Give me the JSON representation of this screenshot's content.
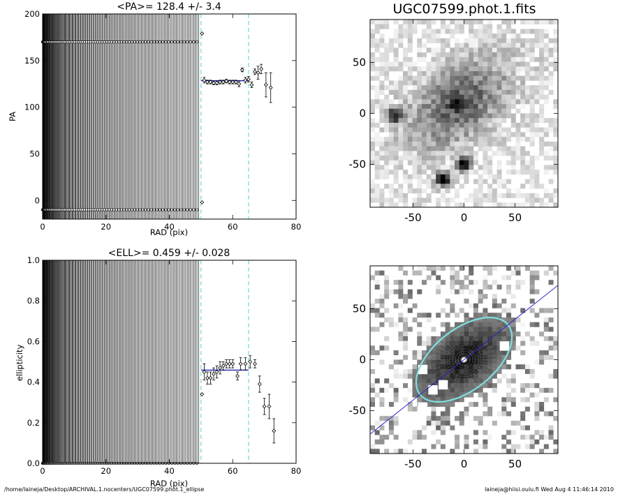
{
  "footer": {
    "path": "/home/laineja/Desktop/ARCHIVAL.1.nocenters/UGC07599.phot.1_ellipse",
    "stamp": "laineja@hiisi.oulu.fi  Wed Aug  4 11:46:14 2010"
  },
  "chart_data": [
    {
      "id": "pa",
      "type": "scatter",
      "title": "<PA>= 128.4 +/-   3.4",
      "xlabel": "RAD (pix)",
      "ylabel": "PA",
      "xlim": [
        0,
        80
      ],
      "ylim": [
        -20,
        200
      ],
      "xticks": [
        "0",
        "20",
        "40",
        "60",
        "80"
      ],
      "yticks": [
        "0",
        "50",
        "100",
        "150",
        "200"
      ],
      "mean_line": {
        "x": [
          50,
          65
        ],
        "y": 128.4
      },
      "marker_lines": [
        50,
        65
      ],
      "inner_rows": [
        {
          "y": 170,
          "x_max": 49.2
        },
        {
          "y": -10,
          "x_max": 49.2
        }
      ],
      "points": [
        {
          "x": 50.3,
          "y": 179,
          "err": 0
        },
        {
          "x": 50.3,
          "y": -2,
          "err": 0
        },
        {
          "x": 51.0,
          "y": 129,
          "err": 3
        },
        {
          "x": 52.0,
          "y": 127,
          "err": 2
        },
        {
          "x": 53.0,
          "y": 127,
          "err": 2
        },
        {
          "x": 54.0,
          "y": 126,
          "err": 2
        },
        {
          "x": 55.0,
          "y": 126,
          "err": 2
        },
        {
          "x": 56.0,
          "y": 127,
          "err": 2
        },
        {
          "x": 57.0,
          "y": 127,
          "err": 2
        },
        {
          "x": 58.0,
          "y": 128,
          "err": 2
        },
        {
          "x": 59.0,
          "y": 127,
          "err": 2
        },
        {
          "x": 60.0,
          "y": 127,
          "err": 2
        },
        {
          "x": 61.0,
          "y": 127,
          "err": 2
        },
        {
          "x": 62.0,
          "y": 125,
          "err": 3
        },
        {
          "x": 63.0,
          "y": 140,
          "err": 2
        },
        {
          "x": 64.0,
          "y": 129,
          "err": 3
        },
        {
          "x": 65.0,
          "y": 130,
          "err": 3
        },
        {
          "x": 66.0,
          "y": 124,
          "err": 3
        },
        {
          "x": 67.0,
          "y": 138,
          "err": 3
        },
        {
          "x": 68.0,
          "y": 137,
          "err": 7
        },
        {
          "x": 69.0,
          "y": 141,
          "err": 5
        },
        {
          "x": 70.5,
          "y": 124,
          "err": 13
        },
        {
          "x": 72.0,
          "y": 121,
          "err": 16
        }
      ]
    },
    {
      "id": "ell",
      "type": "scatter",
      "title": "<ELL>= 0.459 +/-  0.028",
      "xlabel": "RAD (pix)",
      "ylabel": "ellipticity",
      "xlim": [
        0,
        80
      ],
      "ylim": [
        0,
        1
      ],
      "xticks": [
        "0",
        "20",
        "40",
        "60",
        "80"
      ],
      "yticks": [
        "0.0",
        "0.2",
        "0.4",
        "0.6",
        "0.8",
        "1.0"
      ],
      "mean_line": {
        "x": [
          50,
          65
        ],
        "y": 0.459
      },
      "marker_lines": [
        50,
        65
      ],
      "inner_rows": [
        {
          "y": 0.0,
          "x_max": 49.2
        }
      ],
      "points": [
        {
          "x": 50.3,
          "y": 0.34,
          "err": 0
        },
        {
          "x": 51.0,
          "y": 0.45,
          "err": 0.04
        },
        {
          "x": 52.0,
          "y": 0.42,
          "err": 0.03
        },
        {
          "x": 53.0,
          "y": 0.42,
          "err": 0.03
        },
        {
          "x": 54.0,
          "y": 0.44,
          "err": 0.03
        },
        {
          "x": 55.0,
          "y": 0.45,
          "err": 0.03
        },
        {
          "x": 56.0,
          "y": 0.47,
          "err": 0.03
        },
        {
          "x": 57.0,
          "y": 0.48,
          "err": 0.02
        },
        {
          "x": 58.0,
          "y": 0.49,
          "err": 0.02
        },
        {
          "x": 59.0,
          "y": 0.49,
          "err": 0.02
        },
        {
          "x": 60.0,
          "y": 0.49,
          "err": 0.02
        },
        {
          "x": 61.5,
          "y": 0.43,
          "err": 0.02
        },
        {
          "x": 62.5,
          "y": 0.49,
          "err": 0.03
        },
        {
          "x": 64.0,
          "y": 0.49,
          "err": 0.03
        },
        {
          "x": 65.5,
          "y": 0.5,
          "err": 0.03
        },
        {
          "x": 67.0,
          "y": 0.49,
          "err": 0.02
        },
        {
          "x": 68.5,
          "y": 0.39,
          "err": 0.04
        },
        {
          "x": 70.0,
          "y": 0.28,
          "err": 0.04
        },
        {
          "x": 71.5,
          "y": 0.28,
          "err": 0.06
        },
        {
          "x": 73.0,
          "y": 0.16,
          "err": 0.06
        }
      ]
    },
    {
      "id": "image",
      "type": "heatmap",
      "title": "UGC07599.phot.1.fits",
      "xlim": [
        -92,
        92
      ],
      "ylim": [
        -92,
        92
      ],
      "xticks": [
        "-50",
        "0",
        "50"
      ],
      "yticks": [
        "-50",
        "0",
        "50"
      ],
      "colormap": "grayscale-inverted",
      "sources": [
        {
          "x": -20,
          "y": -65,
          "peak": 1.0
        },
        {
          "x": 0,
          "y": -50,
          "peak": 0.95
        },
        {
          "x": -68,
          "y": -2,
          "peak": 0.8
        },
        {
          "x": -5,
          "y": 8,
          "peak": 0.45
        }
      ]
    },
    {
      "id": "fit",
      "type": "heatmap",
      "title": "",
      "xlim": [
        -92,
        92
      ],
      "ylim": [
        -92,
        92
      ],
      "xticks": [
        "-50",
        "0",
        "50"
      ],
      "yticks": [
        "-50",
        "0",
        "50"
      ],
      "colormap": "grayscale-inverted",
      "pa_line_angle_deg": 38.4,
      "ellipse": {
        "a": 55,
        "ellipticity": 0.459,
        "pa_deg": 128.4
      },
      "ellipse_color": "#7fe0e0",
      "line_color": "#2a2acc"
    }
  ],
  "colors": {
    "mean_line": "#2222bb",
    "marker_line": "#66dddd",
    "points": "#000000"
  }
}
